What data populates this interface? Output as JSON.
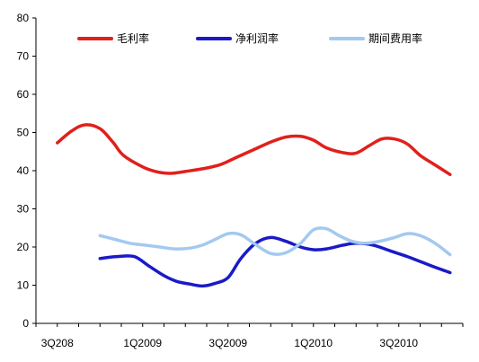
{
  "chart_data": {
    "type": "line",
    "title": "",
    "xlabel": "",
    "ylabel": "",
    "ylim": [
      0,
      80
    ],
    "y_ticks": [
      0,
      10,
      20,
      30,
      40,
      50,
      60,
      70,
      80
    ],
    "x_tick_labels": [
      {
        "label": "3Q208",
        "at": 0
      },
      {
        "label": "1Q2009",
        "at": 2
      },
      {
        "label": "3Q2009",
        "at": 4
      },
      {
        "label": "1Q2010",
        "at": 6
      },
      {
        "label": "3Q2010",
        "at": 8
      }
    ],
    "x_range": [
      -0.5,
      9.5
    ],
    "grid": false,
    "legend": {
      "placement": "top"
    },
    "series": [
      {
        "name": "毛利率",
        "color": "#e0201b",
        "x": [
          0,
          0.35,
          0.65,
          1.0,
          1.3,
          1.55,
          2.0,
          2.3,
          2.65,
          3.0,
          3.4,
          3.8,
          4.2,
          4.6,
          5.0,
          5.35,
          5.7,
          6.0,
          6.3,
          6.7,
          7.0,
          7.3,
          7.6,
          7.9,
          8.2,
          8.5,
          8.85,
          9.2
        ],
        "values": [
          47.3,
          50.5,
          52.0,
          51.0,
          47.5,
          44.0,
          41.0,
          39.8,
          39.3,
          39.8,
          40.5,
          41.5,
          43.5,
          45.5,
          47.5,
          48.8,
          49.0,
          48.0,
          46.0,
          44.7,
          44.6,
          46.5,
          48.3,
          48.3,
          47.0,
          44.0,
          41.5,
          39.0
        ]
      },
      {
        "name": "净利润率",
        "color": "#1a1ac8",
        "x": [
          1.0,
          1.4,
          1.8,
          2.15,
          2.5,
          2.8,
          3.1,
          3.4,
          3.7,
          4.0,
          4.3,
          4.65,
          5.0,
          5.35,
          5.7,
          6.0,
          6.3,
          6.7,
          7.0,
          7.4,
          7.8,
          8.2,
          8.55,
          8.9,
          9.2
        ],
        "values": [
          17.0,
          17.5,
          17.5,
          15.0,
          12.5,
          11.0,
          10.3,
          9.8,
          10.5,
          12.0,
          17.0,
          21.0,
          22.5,
          21.5,
          20.0,
          19.3,
          19.5,
          20.5,
          21.0,
          20.5,
          19.0,
          17.5,
          16.0,
          14.5,
          13.3
        ]
      },
      {
        "name": "期间费用率",
        "color": "#a3c9f0",
        "x": [
          1.0,
          1.35,
          1.7,
          2.05,
          2.4,
          2.75,
          3.1,
          3.4,
          3.7,
          4.0,
          4.3,
          4.6,
          5.0,
          5.35,
          5.7,
          6.0,
          6.3,
          6.6,
          6.9,
          7.2,
          7.55,
          7.9,
          8.2,
          8.5,
          8.85,
          9.2
        ],
        "values": [
          23.0,
          22.0,
          21.0,
          20.5,
          20.0,
          19.5,
          19.7,
          20.5,
          22.0,
          23.5,
          23.2,
          21.0,
          18.3,
          18.5,
          21.0,
          24.5,
          24.8,
          23.0,
          21.5,
          21.0,
          21.5,
          22.5,
          23.5,
          23.0,
          21.0,
          18.0
        ]
      }
    ]
  }
}
